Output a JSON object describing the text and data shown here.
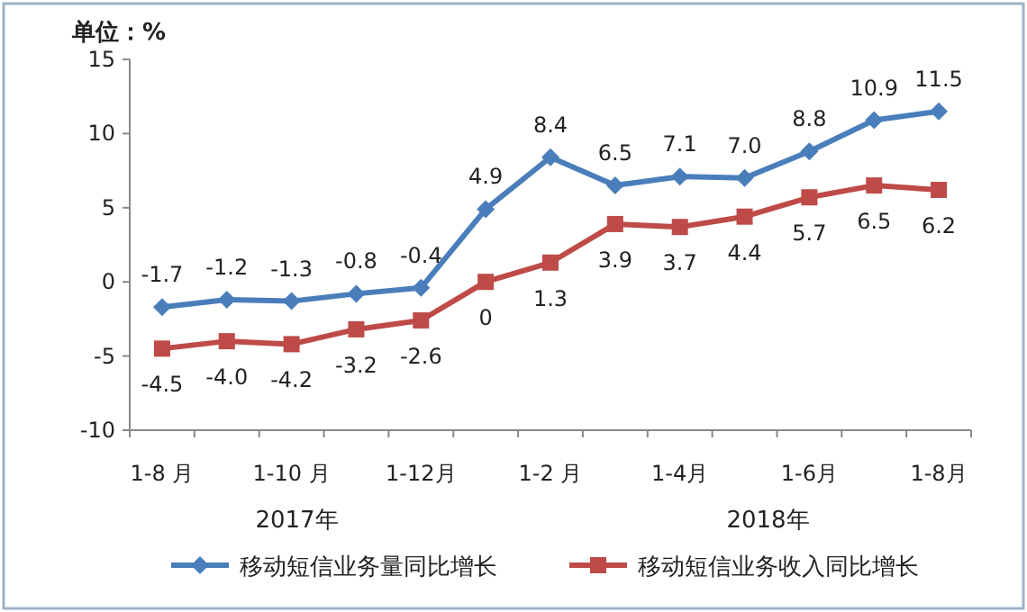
{
  "chart_data": {
    "type": "line",
    "ylabel": "单位：%",
    "categories": [
      "1-8 月",
      null,
      "1-10 月",
      null,
      "1-12月",
      null,
      "1-2 月",
      null,
      "1-4月",
      null,
      "1-6月",
      null,
      "1-8月"
    ],
    "series": [
      {
        "name": "移动短信业务量同比增长",
        "color": "#4a7ebb",
        "marker": "diamond",
        "values": [
          -1.7,
          -1.2,
          -1.3,
          -0.8,
          -0.4,
          4.9,
          8.4,
          6.5,
          7.1,
          7.0,
          8.8,
          10.9,
          11.5
        ],
        "value_labels": [
          "-1.7",
          "-1.2",
          "-1.3",
          "-0.8",
          "-0.4",
          "4.9",
          "8.4",
          "6.5",
          "7.1",
          "7.0",
          "8.8",
          "10.9",
          "11.5"
        ]
      },
      {
        "name": "移动短信业务收入同比增长",
        "color": "#be4b48",
        "marker": "square",
        "values": [
          -4.5,
          -4.0,
          -4.2,
          -3.2,
          -2.6,
          0,
          1.3,
          3.9,
          3.7,
          4.4,
          5.7,
          6.5,
          6.2
        ],
        "value_labels": [
          "-4.5",
          "-4.0",
          "-4.2",
          "-3.2",
          "-2.6",
          "0",
          "1.3",
          "3.9",
          "3.7",
          "4.4",
          "5.7",
          "6.5",
          "6.2"
        ]
      }
    ],
    "ylim": [
      -10,
      15
    ],
    "yticks": [
      -10,
      -5,
      0,
      5,
      10,
      15
    ],
    "grid": false,
    "legend": "bottom",
    "annotations": [
      "2017年",
      "2018年"
    ]
  }
}
